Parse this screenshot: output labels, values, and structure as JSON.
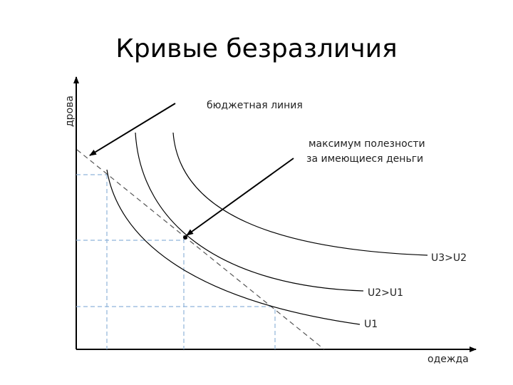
{
  "title": "Кривые безразличия",
  "y_axis_label": "дрова",
  "x_axis_label": "одежда",
  "annotations": {
    "budget_line": "бюджетная линия",
    "max_utility": [
      "максимум полезности",
      "за имеющиеся деньги"
    ]
  },
  "curves": {
    "u3": "U3>U2",
    "u2": "U2>U1",
    "u1": "U1"
  }
}
